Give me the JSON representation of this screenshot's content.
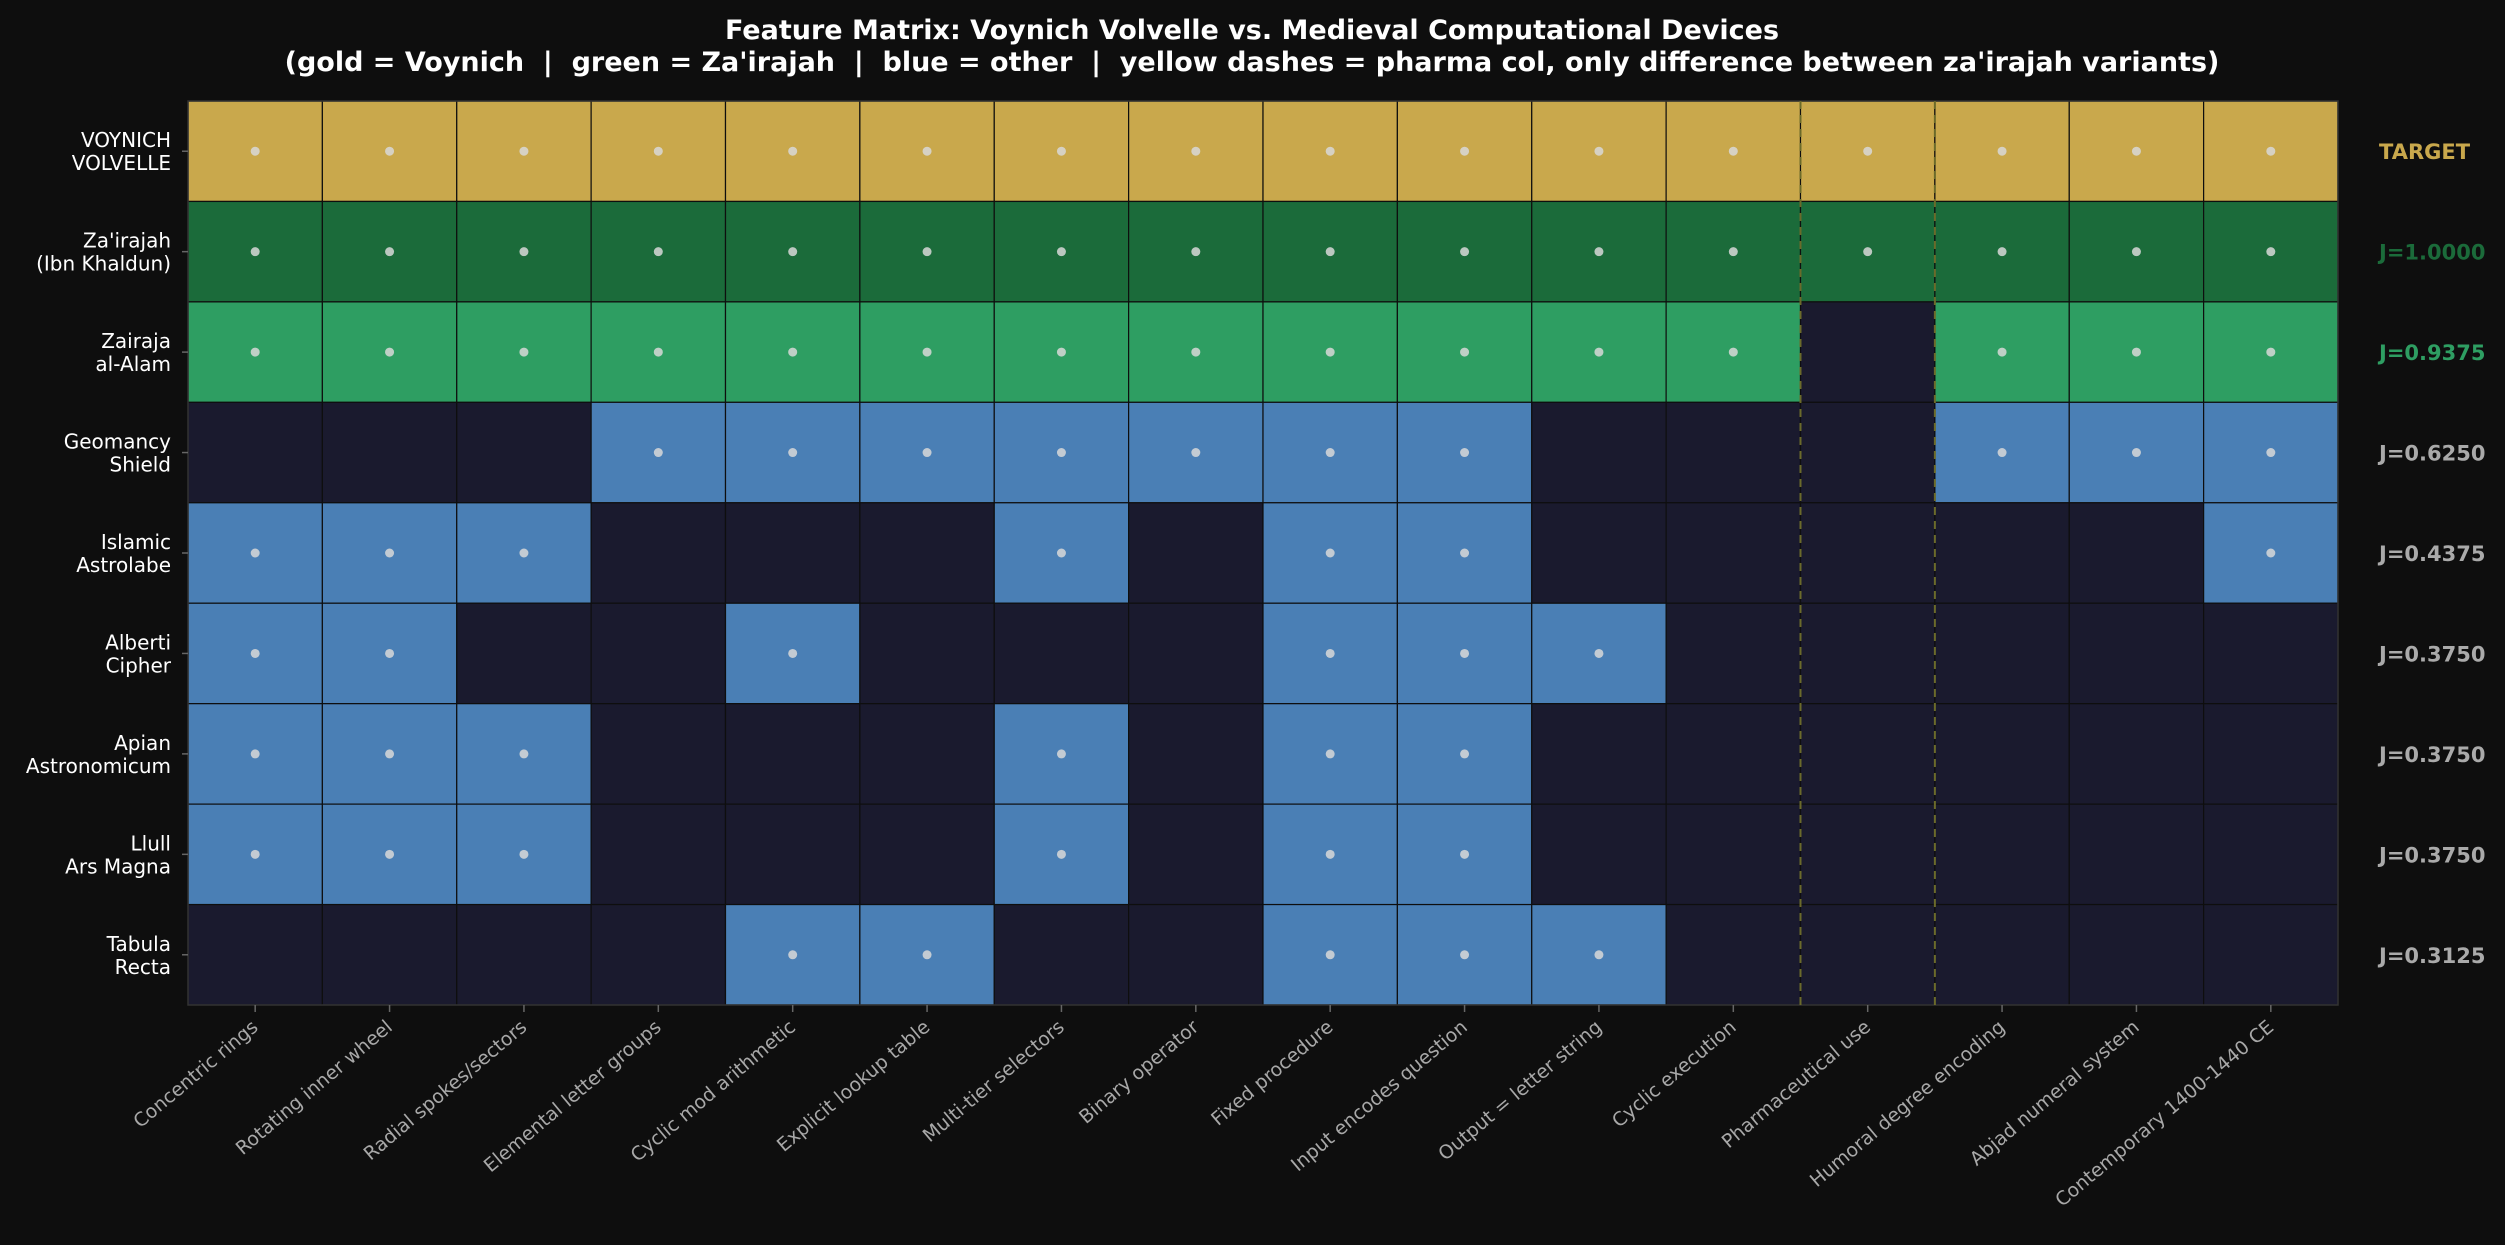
{
  "chart_data": {
    "type": "heatmap",
    "title": "Feature Matrix: Voynich Volvelle vs. Medieval Computational Devices",
    "subtitle": "(gold = Voynich  |  green = Za'irajah  |  blue = other  |  yellow dashes = pharma col, only difference between za'irajah variants)",
    "columns": [
      "Concentric rings",
      "Rotating inner wheel",
      "Radial spokes/sectors",
      "Elemental letter groups",
      "Cyclic mod arithmetic",
      "Explicit lookup table",
      "Multi-tier selectors",
      "Binary operator",
      "Fixed procedure",
      "Input encodes question",
      "Output = letter string",
      "Cyclic execution",
      "Pharmaceutical use",
      "Humoral degree encoding",
      "Abjad numeral system",
      "Contemporary 1400-1440 CE"
    ],
    "highlight_column": "Pharmaceutical use",
    "rows": [
      {
        "label": [
          "VOYNICH",
          "VOLVELLE"
        ],
        "score": "TARGET",
        "color": "#c9a84c",
        "score_color": "#c9a84c",
        "values": [
          1,
          1,
          1,
          1,
          1,
          1,
          1,
          1,
          1,
          1,
          1,
          1,
          1,
          1,
          1,
          1
        ]
      },
      {
        "label": [
          "Za'irajah",
          "(Ibn Khaldun)"
        ],
        "score": "J=1.0000",
        "color": "#1b6b3a",
        "score_color": "#1b6b3a",
        "values": [
          1,
          1,
          1,
          1,
          1,
          1,
          1,
          1,
          1,
          1,
          1,
          1,
          1,
          1,
          1,
          1
        ]
      },
      {
        "label": [
          "Zairaja",
          "al-Alam"
        ],
        "score": "J=0.9375",
        "color": "#2e9e62",
        "score_color": "#2e9e62",
        "values": [
          1,
          1,
          1,
          1,
          1,
          1,
          1,
          1,
          1,
          1,
          1,
          1,
          0,
          1,
          1,
          1
        ]
      },
      {
        "label": [
          "Geomancy",
          "Shield"
        ],
        "score": "J=0.6250",
        "color": "#4a7fb5",
        "score_color": "#aaaaaa",
        "values": [
          0,
          0,
          0,
          1,
          1,
          1,
          1,
          1,
          1,
          1,
          0,
          0,
          0,
          1,
          1,
          1
        ]
      },
      {
        "label": [
          "Islamic",
          "Astrolabe"
        ],
        "score": "J=0.4375",
        "color": "#4a7fb5",
        "score_color": "#aaaaaa",
        "values": [
          1,
          1,
          1,
          0,
          0,
          0,
          1,
          0,
          1,
          1,
          0,
          0,
          0,
          0,
          0,
          1
        ]
      },
      {
        "label": [
          "Alberti",
          "Cipher"
        ],
        "score": "J=0.3750",
        "color": "#4a7fb5",
        "score_color": "#aaaaaa",
        "values": [
          1,
          1,
          0,
          0,
          1,
          0,
          0,
          0,
          1,
          1,
          1,
          0,
          0,
          0,
          0,
          0
        ]
      },
      {
        "label": [
          "Apian",
          "Astronomicum"
        ],
        "score": "J=0.3750",
        "color": "#4a7fb5",
        "score_color": "#aaaaaa",
        "values": [
          1,
          1,
          1,
          0,
          0,
          0,
          1,
          0,
          1,
          1,
          0,
          0,
          0,
          0,
          0,
          0
        ]
      },
      {
        "label": [
          "Llull",
          "Ars Magna"
        ],
        "score": "J=0.3750",
        "color": "#4a7fb5",
        "score_color": "#aaaaaa",
        "values": [
          1,
          1,
          1,
          0,
          0,
          0,
          1,
          0,
          1,
          1,
          0,
          0,
          0,
          0,
          0,
          0
        ]
      },
      {
        "label": [
          "Tabula",
          "Recta"
        ],
        "score": "J=0.3125",
        "color": "#4a7fb5",
        "score_color": "#aaaaaa",
        "values": [
          0,
          0,
          0,
          0,
          1,
          1,
          0,
          0,
          1,
          1,
          1,
          0,
          0,
          0,
          0,
          0
        ]
      }
    ],
    "empty_color": "#1a1a2e",
    "background_color": "#0e0e0e",
    "dot_color": "#d8d8d8",
    "dash_color": "#6b6a2a",
    "legend": "none",
    "grid": false
  }
}
